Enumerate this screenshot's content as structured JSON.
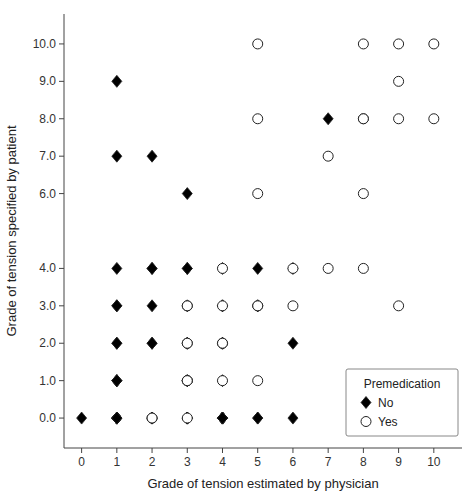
{
  "chart_data": {
    "type": "scatter",
    "xlabel": "Grade of tension estimated by physician",
    "ylabel": "Grade of tension specified by patient",
    "xlim": [
      -0.5,
      10.8
    ],
    "ylim": [
      -0.8,
      10.8
    ],
    "xticks": [
      0,
      1,
      2,
      3,
      4,
      5,
      6,
      7,
      8,
      9,
      10
    ],
    "yticks": [
      {
        "value": 0.0,
        "label": "0.0"
      },
      {
        "value": 1.0,
        "label": "1.0"
      },
      {
        "value": 2.0,
        "label": "2.0"
      },
      {
        "value": 3.0,
        "label": "3.0"
      },
      {
        "value": 4.0,
        "label": "4.0"
      },
      {
        "value": 6.0,
        "label": "6.0"
      },
      {
        "value": 7.0,
        "label": "7.0"
      },
      {
        "value": 8.0,
        "label": "8.0"
      },
      {
        "value": 9.0,
        "label": "9.0"
      },
      {
        "value": 10.0,
        "label": "10.0"
      }
    ],
    "legend": "lower right",
    "legend_title": "Premedication",
    "series": [
      {
        "name": "No",
        "color": "black",
        "marker": "diamond",
        "x": [
          0,
          1,
          1,
          1,
          1,
          1,
          1,
          1,
          1,
          1,
          1,
          1,
          1,
          1,
          1,
          1,
          1,
          1,
          2,
          2,
          2,
          2,
          2,
          2,
          2,
          2,
          2,
          3,
          3,
          3,
          3,
          3,
          3,
          3,
          3,
          3,
          3,
          3,
          3,
          3,
          4,
          4,
          4,
          4,
          4,
          4,
          4,
          4,
          4,
          4,
          4,
          5,
          5,
          5,
          5,
          5,
          6,
          6,
          6,
          7
        ],
        "values": [
          0,
          0,
          0,
          0,
          0,
          0,
          0,
          0,
          1,
          1,
          1,
          2,
          2,
          3,
          3,
          4,
          7,
          9,
          0,
          0,
          0,
          2,
          2,
          3,
          4,
          4,
          7,
          0,
          0,
          0,
          0,
          0,
          1,
          1,
          2,
          2,
          3,
          4,
          4,
          6,
          0,
          0,
          0,
          0,
          0,
          1,
          2,
          2,
          3,
          3,
          4,
          0,
          0,
          3,
          3,
          4,
          0,
          2,
          4,
          8
        ]
      },
      {
        "name": "Yes",
        "color": "white",
        "marker": "circle",
        "x": [
          2,
          2,
          3,
          3,
          3,
          3,
          3,
          3,
          3,
          3,
          4,
          4,
          4,
          4,
          4,
          5,
          5,
          5,
          5,
          5,
          5,
          6,
          6,
          7,
          7,
          8,
          8,
          8,
          8,
          8,
          9,
          9,
          9,
          9,
          10,
          10
        ],
        "values": [
          0,
          0,
          0,
          1,
          1,
          1,
          2,
          2,
          3,
          3,
          1,
          2,
          2,
          3,
          4,
          1,
          3,
          3,
          6,
          8,
          10,
          3,
          4,
          4,
          7,
          4,
          8,
          8,
          6,
          10,
          3,
          8,
          9,
          10,
          8,
          10
        ]
      }
    ]
  }
}
